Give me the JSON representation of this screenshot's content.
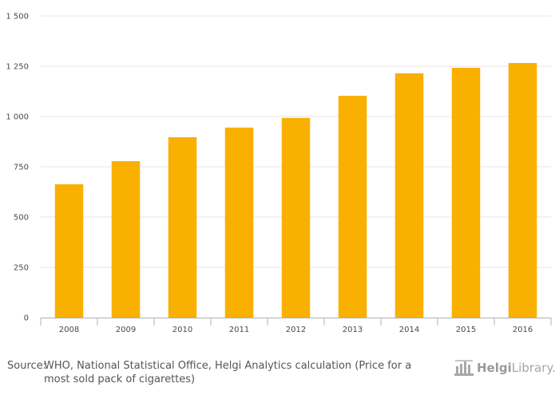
{
  "chart_data": {
    "type": "bar",
    "categories": [
      "2008",
      "2009",
      "2010",
      "2011",
      "2012",
      "2013",
      "2014",
      "2015",
      "2016"
    ],
    "values": [
      663,
      778,
      897,
      945,
      993,
      1103,
      1215,
      1242,
      1266
    ],
    "yticks": [
      "0",
      "250",
      "500",
      "750",
      "1 000",
      "1 250",
      "1 500"
    ],
    "ylim": [
      0,
      1500
    ],
    "grid": true,
    "bar_color": "#f9b000",
    "title": "",
    "xlabel": "",
    "ylabel": ""
  },
  "footer": {
    "source_label": "Source:",
    "source_text": "WHO, National Statistical Office, Helgi Analytics calculation (Price for a most sold pack of cigarettes)"
  },
  "logo": {
    "name_bold": "Helgi",
    "name_light": "Library.",
    "icon": "building-icon"
  }
}
